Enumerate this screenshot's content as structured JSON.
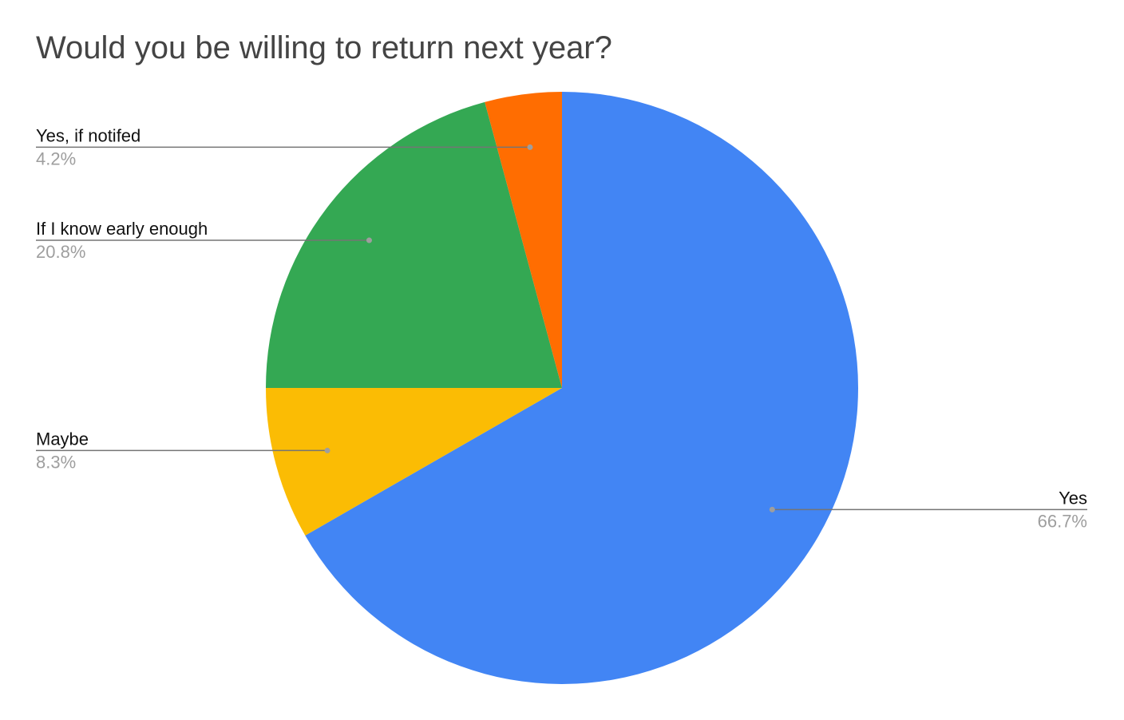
{
  "chart_data": {
    "type": "pie",
    "title": "Would you be willing to return next year?",
    "start_angle_deg": 0,
    "direction": "clockwise",
    "slices": [
      {
        "label": "Yes",
        "value": 66.7,
        "percent_label": "66.7%",
        "color": "#4285f4"
      },
      {
        "label": "Maybe",
        "value": 8.3,
        "percent_label": "8.3%",
        "color": "#fbbc04"
      },
      {
        "label": "If I know early enough",
        "value": 20.8,
        "percent_label": "20.8%",
        "color": "#34a853"
      },
      {
        "label": "Yes, if notifed",
        "value": 4.2,
        "percent_label": "4.2%",
        "color": "#ff6d01"
      }
    ],
    "legend": "none",
    "leader_line_color": "#757575",
    "leader_dot_color": "#9e9e9e"
  }
}
